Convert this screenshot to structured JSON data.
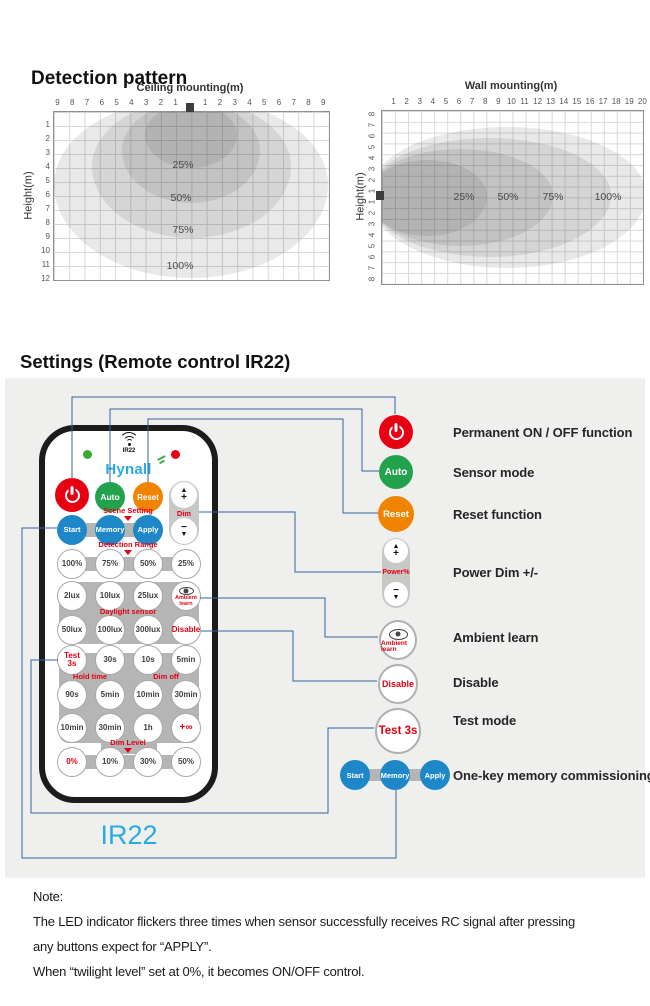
{
  "page": {
    "detection_heading": "Detection pattern",
    "settings_heading": "Settings (Remote control IR22)"
  },
  "chart_data": [
    {
      "type": "area",
      "title": "Ceiling mounting(m)",
      "ylabel": "Height(m)",
      "x_ticks": [
        "9",
        "8",
        "7",
        "6",
        "5",
        "4",
        "3",
        "2",
        "1",
        "",
        "1",
        "2",
        "3",
        "4",
        "5",
        "6",
        "7",
        "8",
        "9"
      ],
      "y_ticks": [
        "1",
        "2",
        "3",
        "4",
        "5",
        "6",
        "7",
        "8",
        "9",
        "10",
        "11",
        "12"
      ],
      "x_range_m": [
        -9,
        9
      ],
      "y_range_m": [
        0,
        12
      ],
      "grid": true,
      "sensor_position": "top-center",
      "rings": [
        {
          "label": "25%",
          "half_width_m": 3,
          "depth_m": 4
        },
        {
          "label": "50%",
          "half_width_m": 4.5,
          "depth_m": 6.5
        },
        {
          "label": "75%",
          "half_width_m": 6.5,
          "depth_m": 9
        },
        {
          "label": "100%",
          "half_width_m": 9,
          "depth_m": 12
        }
      ]
    },
    {
      "type": "area",
      "title": "Wall mounting(m)",
      "ylabel": "Height(m)",
      "x_ticks": [
        "1",
        "2",
        "3",
        "4",
        "5",
        "6",
        "7",
        "8",
        "9",
        "10",
        "11",
        "12",
        "13",
        "14",
        "15",
        "16",
        "17",
        "18",
        "19",
        "20"
      ],
      "y_ticks": [
        "8",
        "7",
        "6",
        "5",
        "4",
        "3",
        "2",
        "1",
        "1",
        "2",
        "3",
        "4",
        "5",
        "6",
        "7",
        "8"
      ],
      "x_range_m": [
        0,
        20
      ],
      "y_range_m": [
        -8,
        8
      ],
      "grid": true,
      "sensor_position": "left-center",
      "rings": [
        {
          "label": "25%",
          "reach_m": 8,
          "half_height_m": 3.5
        },
        {
          "label": "50%",
          "reach_m": 13,
          "half_height_m": 4.5
        },
        {
          "label": "75%",
          "reach_m": 17.5,
          "half_height_m": 5.5
        },
        {
          "label": "100%",
          "reach_m": 20,
          "half_height_m": 6.5
        }
      ]
    }
  ],
  "remote": {
    "brand": "Hynall",
    "top_label": "IR22",
    "caption": "IR22",
    "dim_label": "Dim",
    "scene_setting_label": "Scene Setting",
    "detection_range_label": "Detection Range",
    "daylight_sensor_label": "Daylight sensor",
    "hold_time_label": "Hold time",
    "dim_off_label": "Dim off",
    "dim_level_label": "Dim Level",
    "buttons": {
      "auto": "Auto",
      "reset": "Reset",
      "scene_row": [
        "Start",
        "Memory",
        "Apply"
      ],
      "detection_row": [
        "100%",
        "75%",
        "50%",
        "25%"
      ],
      "lux_row1": [
        "2lux",
        "10lux",
        "25lux"
      ],
      "ambient": "Ambient learn",
      "lux_row2": [
        "50lux",
        "100lux",
        "300lux"
      ],
      "disable": "Disable",
      "time_row1": [
        "Test 3s",
        "30s",
        "10s",
        "5min"
      ],
      "time_row2": [
        "90s",
        "5min",
        "10min",
        "30min"
      ],
      "time_row3": [
        "10min",
        "30min",
        "1h",
        "+∞"
      ],
      "dim_level_row": [
        "0%",
        "10%",
        "30%",
        "50%"
      ]
    }
  },
  "symbols": {
    "plus": "+",
    "minus": "−",
    "up": "▲",
    "down": "▼"
  },
  "legend": {
    "items": [
      {
        "icon": "power-icon",
        "label": "Permanent ON / OFF function"
      },
      {
        "icon": "auto-button",
        "button": "Auto",
        "label": "Sensor mode"
      },
      {
        "icon": "reset-button",
        "button": "Reset",
        "label": "Reset function"
      },
      {
        "icon": "power-dim-control",
        "button": "Power%",
        "label": "Power Dim +/-"
      },
      {
        "icon": "ambient-learn-button",
        "button": "Ambient learn",
        "label": "Ambient learn"
      },
      {
        "icon": "disable-button",
        "button": "Disable",
        "label": "Disable"
      },
      {
        "icon": "test-button",
        "button": "Test 3s",
        "label": "Test mode"
      },
      {
        "icon": "start-memory-apply-buttons",
        "buttons": [
          "Start",
          "Memory",
          "Apply"
        ],
        "label": "One-key memory commissioning"
      }
    ]
  },
  "note": {
    "title": "Note:",
    "lines": [
      "The LED indicator flickers three times when sensor successfully receives RC signal after pressing",
      "any buttons expect for “APPLY”.",
      "When “twilight level” set at 0%, it becomes ON/OFF control."
    ]
  },
  "colors": {
    "accent_red": "#e60012",
    "accent_green": "#23a24d",
    "accent_orange": "#f08300",
    "accent_blue": "#1e87c8",
    "brand_cyan": "#29abe2",
    "callout_line": "#2f63a0",
    "panel_gray": "#efefee",
    "connector_gray": "#b5b5b5"
  }
}
